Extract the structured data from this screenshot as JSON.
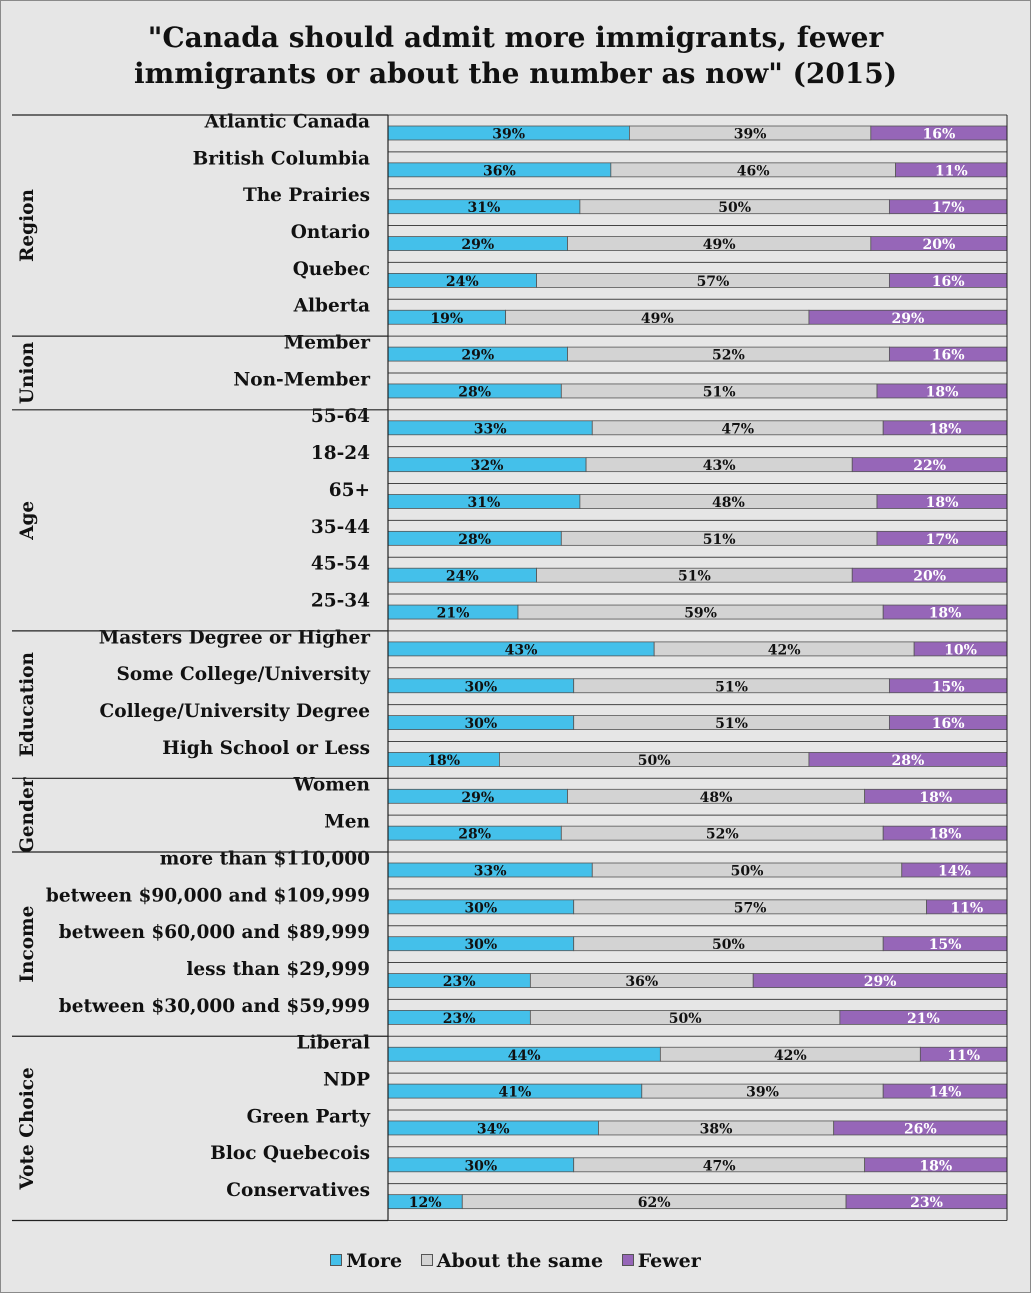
{
  "chart_data": {
    "type": "bar",
    "stacked": true,
    "orientation": "horizontal",
    "title_lines": [
      "\"Canada should admit more immigrants, fewer",
      "immigrants or about the number as now\" (2015)"
    ],
    "legend": [
      "More",
      "About the same",
      "Fewer"
    ],
    "colors": {
      "more": "#44c0ea",
      "same": "#d3d3d3",
      "fewer": "#9666b8"
    },
    "groups": [
      {
        "name": "Region",
        "rows": [
          {
            "label": "Atlantic Canada",
            "values": [
              39,
              39,
              16
            ]
          },
          {
            "label": "British Columbia",
            "values": [
              36,
              46,
              11
            ]
          },
          {
            "label": "The Prairies",
            "values": [
              31,
              50,
              17
            ]
          },
          {
            "label": "Ontario",
            "values": [
              29,
              49,
              20
            ]
          },
          {
            "label": "Quebec",
            "values": [
              24,
              57,
              16
            ]
          },
          {
            "label": "Alberta",
            "values": [
              19,
              49,
              29
            ]
          }
        ]
      },
      {
        "name": "Union",
        "rows": [
          {
            "label": "Member",
            "values": [
              29,
              52,
              16
            ]
          },
          {
            "label": "Non-Member",
            "values": [
              28,
              51,
              18
            ]
          }
        ]
      },
      {
        "name": "Age",
        "rows": [
          {
            "label": "55-64",
            "values": [
              33,
              47,
              18
            ]
          },
          {
            "label": "18-24",
            "values": [
              32,
              43,
              22
            ]
          },
          {
            "label": "65+",
            "values": [
              31,
              48,
              18
            ]
          },
          {
            "label": "35-44",
            "values": [
              28,
              51,
              17
            ]
          },
          {
            "label": "45-54",
            "values": [
              24,
              51,
              20
            ]
          },
          {
            "label": "25-34",
            "values": [
              21,
              59,
              18
            ]
          }
        ]
      },
      {
        "name": "Education",
        "rows": [
          {
            "label": "Masters Degree or Higher",
            "values": [
              43,
              42,
              10
            ]
          },
          {
            "label": "Some College/University",
            "values": [
              30,
              51,
              15
            ]
          },
          {
            "label": "College/University Degree",
            "values": [
              30,
              51,
              16
            ]
          },
          {
            "label": "High School or Less",
            "values": [
              18,
              50,
              28
            ]
          }
        ]
      },
      {
        "name": "Gender",
        "rows": [
          {
            "label": "Women",
            "values": [
              29,
              48,
              18
            ]
          },
          {
            "label": "Men",
            "values": [
              28,
              52,
              18
            ]
          }
        ]
      },
      {
        "name": "Income",
        "rows": [
          {
            "label": "more than $110,000",
            "values": [
              33,
              50,
              14
            ]
          },
          {
            "label": "between $90,000 and $109,999",
            "values": [
              30,
              57,
              11
            ]
          },
          {
            "label": "between $60,000 and $89,999",
            "values": [
              30,
              50,
              15
            ]
          },
          {
            "label": "less than $29,999",
            "values": [
              23,
              36,
              29
            ]
          },
          {
            "label": "between $30,000 and $59,999",
            "values": [
              23,
              50,
              21
            ]
          }
        ]
      },
      {
        "name": "Vote Choice",
        "rows": [
          {
            "label": "Liberal",
            "values": [
              44,
              42,
              11
            ]
          },
          {
            "label": "NDP",
            "values": [
              41,
              39,
              14
            ]
          },
          {
            "label": "Green Party",
            "values": [
              34,
              38,
              26
            ]
          },
          {
            "label": "Bloc Quebecois",
            "values": [
              30,
              47,
              18
            ]
          },
          {
            "label": "Conservatives",
            "values": [
              12,
              62,
              23
            ]
          }
        ]
      }
    ]
  }
}
